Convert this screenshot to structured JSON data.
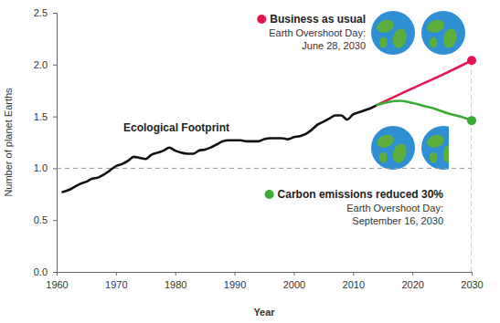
{
  "chart_data": {
    "type": "line",
    "x_label": "Year",
    "y_label": "Number of planet Earths",
    "xlim": [
      1960,
      2030
    ],
    "ylim": [
      0,
      2.5
    ],
    "xticks": [
      1960,
      1970,
      1980,
      1990,
      2000,
      2010,
      2020,
      2030
    ],
    "yticks": [
      {
        "value": 0,
        "label": "0.0"
      },
      0.5,
      {
        "value": 1,
        "label": "1.0"
      },
      1.5,
      {
        "value": 2,
        "label": "2.0"
      },
      2.5
    ],
    "grid": false,
    "reference_lines": [
      {
        "axis": "y",
        "value": 1
      },
      {
        "axis": "x",
        "value": 2030
      }
    ],
    "series": [
      {
        "name": "Ecological Footprint",
        "color": "#111111",
        "line_style": "solid",
        "x": [
          1961,
          1962,
          1963,
          1964,
          1965,
          1966,
          1967,
          1968,
          1969,
          1970,
          1971,
          1972,
          1973,
          1974,
          1975,
          1976,
          1977,
          1978,
          1979,
          1980,
          1981,
          1982,
          1983,
          1984,
          1985,
          1986,
          1987,
          1988,
          1989,
          1990,
          1991,
          1992,
          1993,
          1994,
          1995,
          1996,
          1997,
          1998,
          1999,
          2000,
          2001,
          2002,
          2003,
          2004,
          2005,
          2006,
          2007,
          2008,
          2009,
          2010,
          2011,
          2012,
          2013,
          2014
        ],
        "values": [
          0.77,
          0.79,
          0.82,
          0.85,
          0.87,
          0.9,
          0.91,
          0.94,
          0.98,
          1.02,
          1.04,
          1.07,
          1.11,
          1.1,
          1.09,
          1.13,
          1.15,
          1.17,
          1.2,
          1.17,
          1.15,
          1.14,
          1.14,
          1.17,
          1.18,
          1.2,
          1.23,
          1.26,
          1.27,
          1.27,
          1.27,
          1.26,
          1.26,
          1.26,
          1.28,
          1.29,
          1.29,
          1.29,
          1.28,
          1.3,
          1.31,
          1.33,
          1.37,
          1.42,
          1.45,
          1.48,
          1.51,
          1.51,
          1.47,
          1.52,
          1.54,
          1.56,
          1.58,
          1.61
        ]
      },
      {
        "name": "Business as usual",
        "color": "#e3174d",
        "line_style": "solid",
        "marker": "dot",
        "note": [
          "Earth Overshoot Day:",
          "June 28, 2030"
        ],
        "x": [
          2014,
          2020,
          2025,
          2030
        ],
        "values": [
          1.61,
          1.77,
          1.9,
          2.04
        ]
      },
      {
        "name": "Carbon emissions reduced 30%",
        "color": "#3aaa35",
        "line_style": "solid",
        "marker": "dot",
        "note": [
          "Earth Overshoot Day:",
          "September 16, 2030"
        ],
        "x": [
          2014,
          2016,
          2018,
          2020,
          2022,
          2024,
          2026,
          2028,
          2030
        ],
        "values": [
          1.61,
          1.64,
          1.65,
          1.63,
          1.6,
          1.57,
          1.53,
          1.5,
          1.46
        ]
      }
    ]
  }
}
